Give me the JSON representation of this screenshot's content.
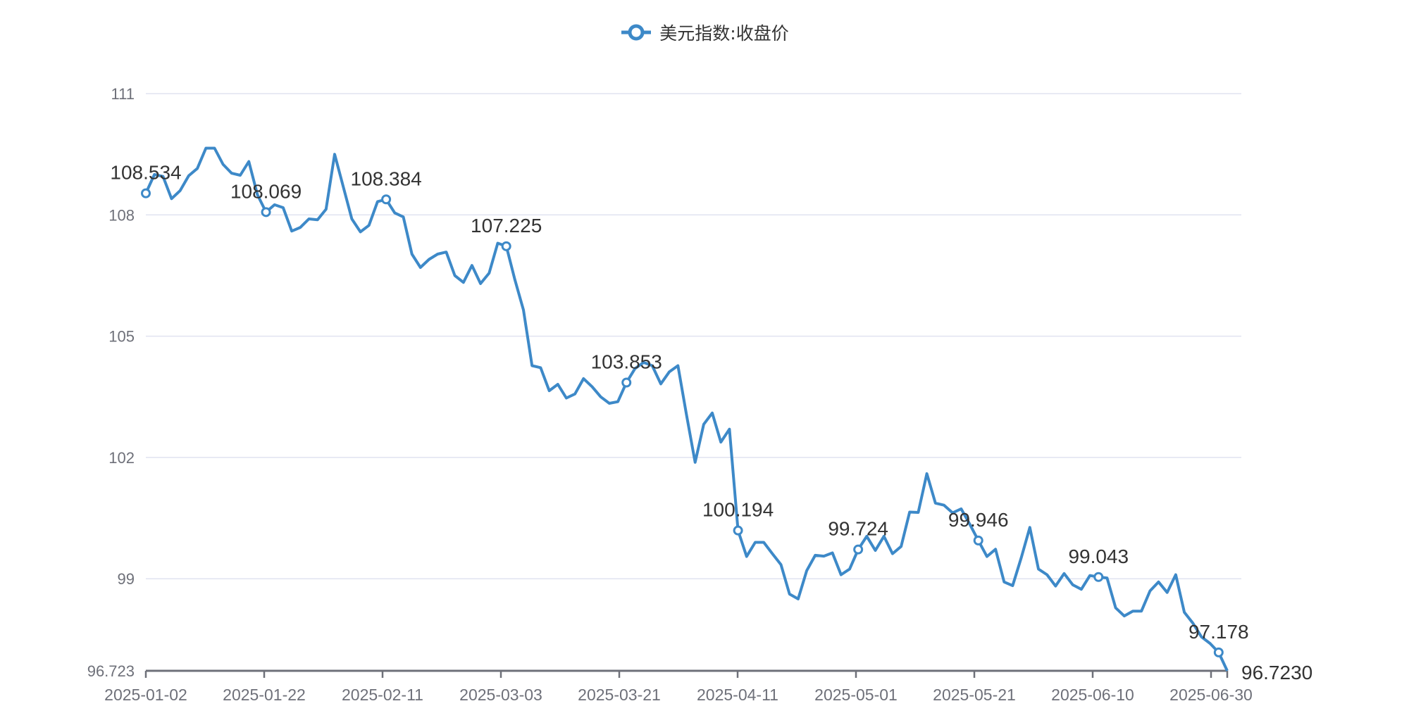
{
  "legend": {
    "label": "美元指数:收盘价",
    "icon": "line-circle-icon",
    "color": "#3d89c8"
  },
  "colors": {
    "line": "#3d89c8",
    "grid": "#e0e3f0",
    "axis": "#6e7079",
    "axis_label": "#6e7079",
    "data_label": "#333333"
  },
  "chart_data": {
    "type": "line",
    "title": "",
    "legend": [
      "美元指数:收盘价"
    ],
    "legend_position": "top-center",
    "xlabel": "",
    "ylabel": "",
    "ylim": [
      96.723,
      111
    ],
    "y_ticks": [
      "96.723",
      "99",
      "102",
      "105",
      "108",
      "111"
    ],
    "x_tick_labels": [
      "2025-01-02",
      "2025-01-22",
      "2025-02-11",
      "2025-03-03",
      "2025-03-21",
      "2025-04-11",
      "2025-05-01",
      "2025-05-21",
      "2025-06-10",
      "2025-06-30"
    ],
    "x_tick_indices": [
      0,
      14,
      28,
      42,
      56,
      70,
      84,
      98,
      112,
      126
    ],
    "grid": true,
    "series": [
      {
        "name": "美元指数:收盘价",
        "values": [
          108.534,
          109.0,
          108.95,
          108.4,
          108.6,
          108.97,
          109.15,
          109.65,
          109.65,
          109.25,
          109.03,
          108.98,
          109.32,
          108.5,
          108.069,
          108.25,
          108.18,
          107.6,
          107.69,
          107.9,
          107.88,
          108.14,
          109.5,
          108.7,
          107.9,
          107.58,
          107.74,
          108.33,
          108.384,
          108.05,
          107.95,
          107.03,
          106.7,
          106.9,
          107.03,
          107.08,
          106.5,
          106.33,
          106.75,
          106.3,
          106.56,
          107.3,
          107.225,
          106.4,
          105.65,
          104.27,
          104.22,
          103.65,
          103.81,
          103.47,
          103.57,
          103.95,
          103.75,
          103.5,
          103.34,
          103.38,
          103.853,
          104.2,
          104.35,
          104.27,
          103.82,
          104.12,
          104.27,
          103.05,
          101.88,
          102.82,
          103.1,
          102.38,
          102.7,
          100.194,
          99.55,
          99.9,
          99.9,
          99.62,
          99.35,
          98.62,
          98.5,
          99.2,
          99.58,
          99.56,
          99.64,
          99.1,
          99.24,
          99.724,
          100.05,
          99.7,
          100.05,
          99.62,
          99.8,
          100.65,
          100.64,
          101.6,
          100.87,
          100.82,
          100.63,
          100.73,
          100.35,
          99.946,
          99.55,
          99.73,
          98.92,
          98.83,
          99.52,
          100.27,
          99.24,
          99.1,
          98.82,
          99.13,
          98.85,
          98.74,
          99.08,
          99.043,
          99.02,
          98.28,
          98.08,
          98.2,
          98.2,
          98.7,
          98.92,
          98.66,
          99.1,
          98.17,
          97.9,
          97.56,
          97.4,
          97.178,
          96.723
        ],
        "markers": [
          {
            "index": 0,
            "label": "108.534"
          },
          {
            "index": 14,
            "label": "108.069"
          },
          {
            "index": 28,
            "label": "108.384"
          },
          {
            "index": 42,
            "label": "107.225"
          },
          {
            "index": 56,
            "label": "103.853"
          },
          {
            "index": 69,
            "label": "100.194"
          },
          {
            "index": 83,
            "label": "99.724"
          },
          {
            "index": 97,
            "label": "99.946"
          },
          {
            "index": 111,
            "label": "99.043"
          },
          {
            "index": 125,
            "label": "97.178"
          },
          {
            "index": 126,
            "label": "96.7230"
          }
        ]
      }
    ]
  }
}
